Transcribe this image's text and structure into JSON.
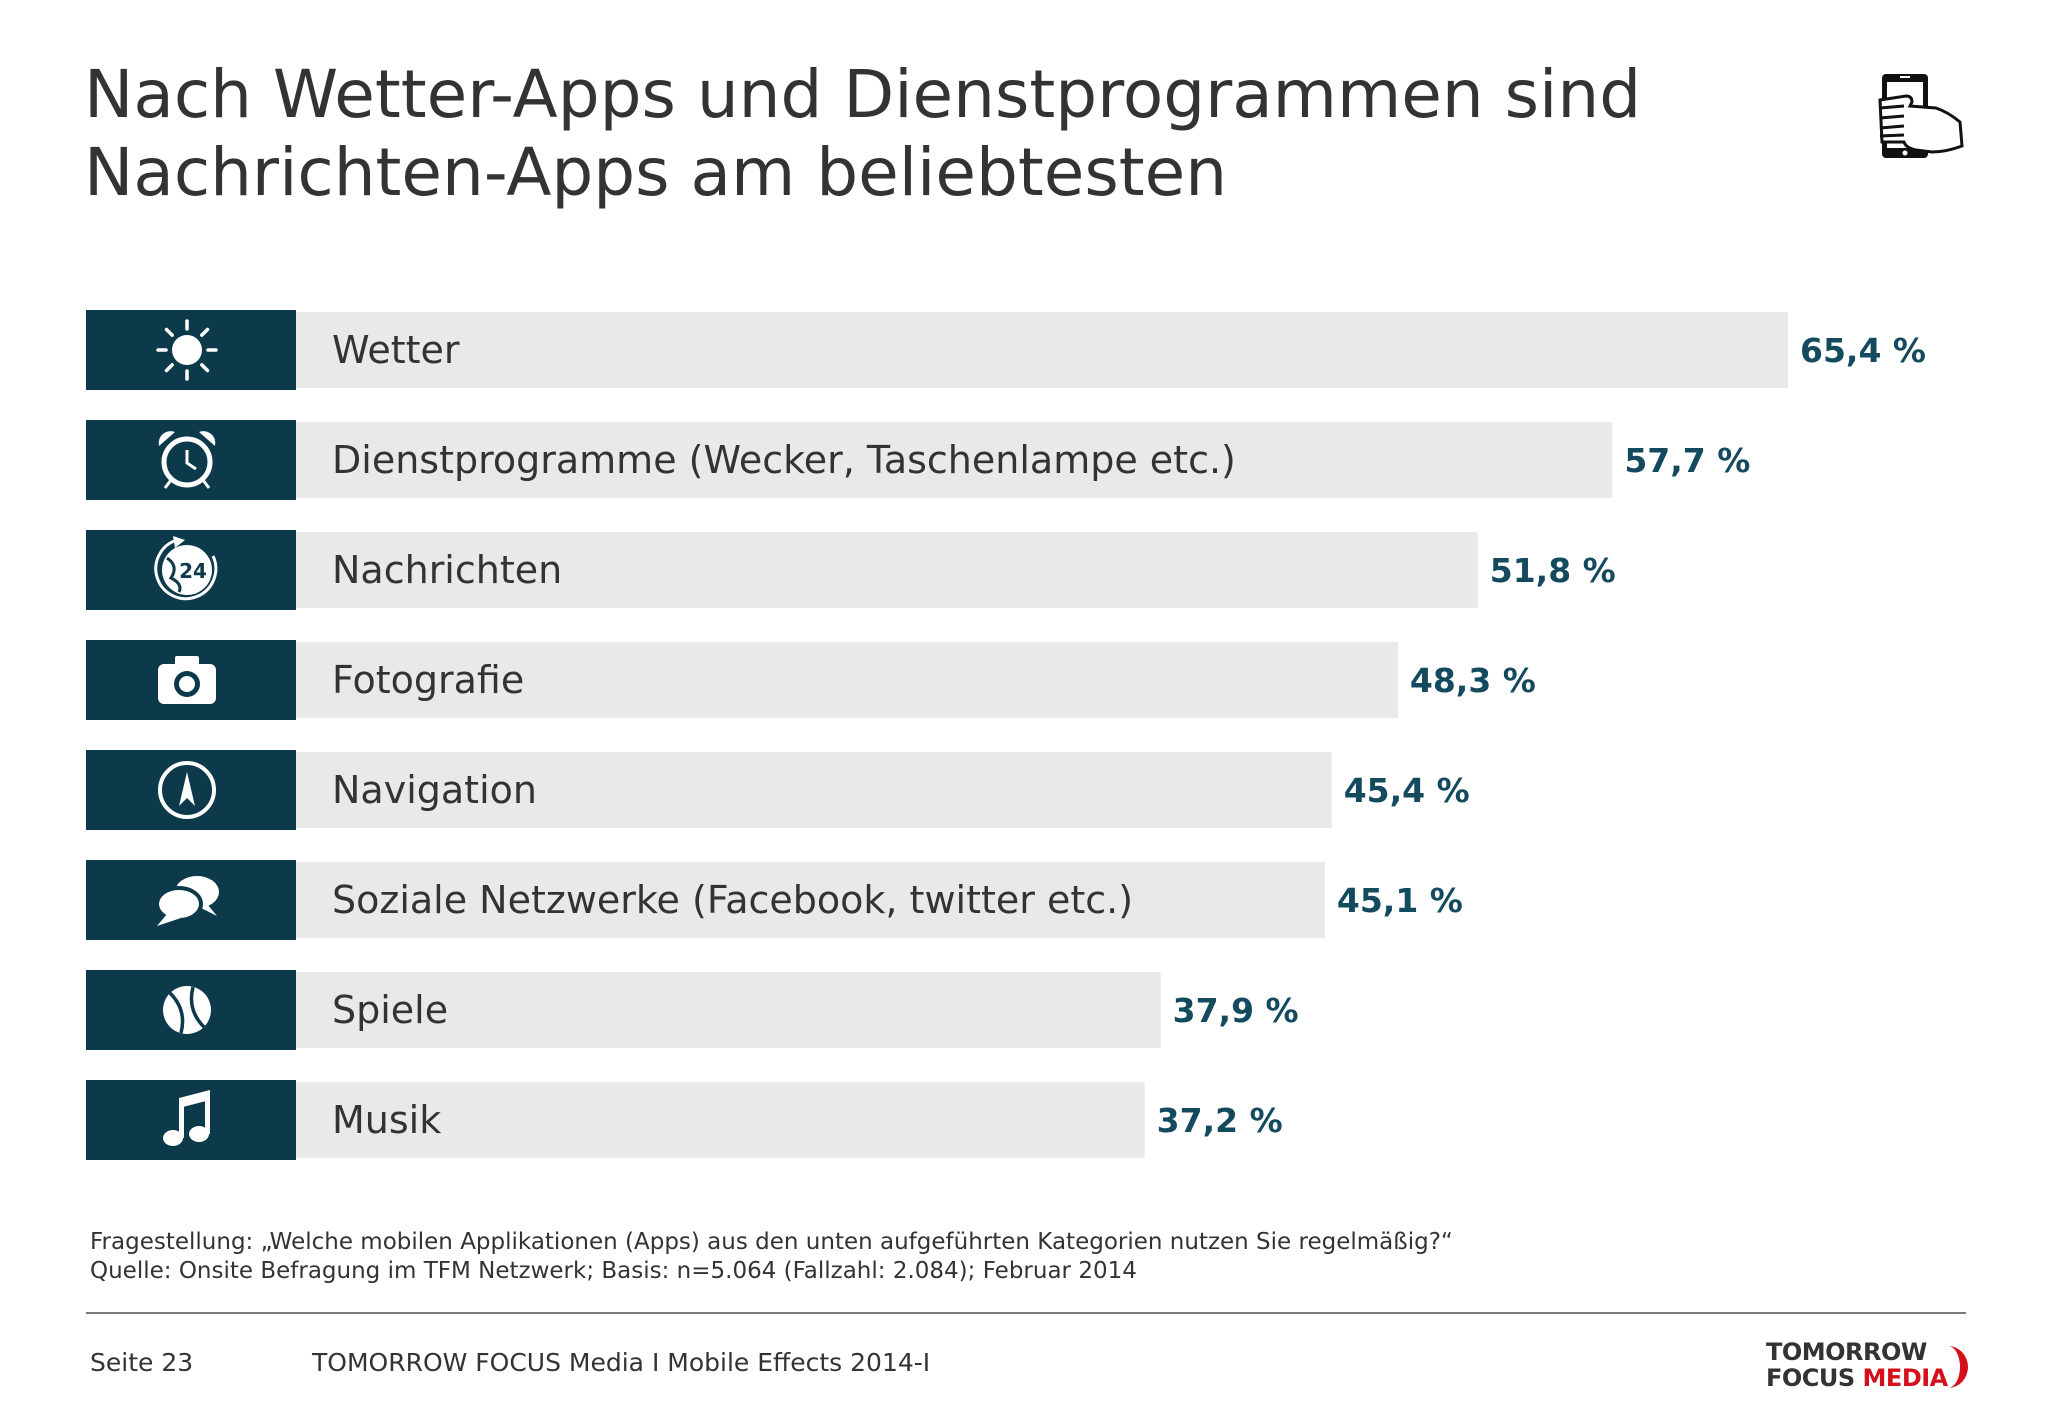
{
  "title": {
    "line1": "Nach Wetter-Apps und Dienstprogrammen sind",
    "line2": "Nachrichten-Apps am beliebtesten"
  },
  "header_icon": "hand-holding-smartphone-icon",
  "colors": {
    "icon_box": "#0c3a4a",
    "bar": "#e9e9e9",
    "value_text": "#134a5e",
    "logo_red": "#d4101a"
  },
  "chart_data": {
    "type": "bar",
    "orientation": "horizontal",
    "categories": [
      "Wetter",
      "Dienstprogramme (Wecker, Taschenlampe etc.)",
      "Nachrichten",
      "Fotografie",
      "Navigation",
      "Soziale Netzwerke (Facebook, twitter etc.)",
      "Spiele",
      "Musik"
    ],
    "values": [
      65.4,
      57.7,
      51.8,
      48.3,
      45.4,
      45.1,
      37.9,
      37.2
    ],
    "value_labels": [
      "65,4 %",
      "57,7 %",
      "51,8 %",
      "48,3 %",
      "45,4 %",
      "45,1 %",
      "37,9 %",
      "37,2 %"
    ],
    "icons": [
      "sun-icon",
      "alarm-clock-icon",
      "globe-24-icon",
      "camera-icon",
      "compass-icon",
      "speech-bubbles-icon",
      "ball-icon",
      "music-note-icon"
    ],
    "unit": "%",
    "grid": false,
    "legend": "none"
  },
  "notes": {
    "question": "Fragestellung: „Welche mobilen Applikationen (Apps) aus den unten aufgeführten Kategorien nutzen Sie regelmäßig?“",
    "source": "Quelle: Onsite Befragung im TFM Netzwerk; Basis: n=5.064 (Fallzahl: 2.084); Februar 2014"
  },
  "footer": {
    "page": "Seite 23",
    "publisher": "TOMORROW FOCUS Media  I  Mobile Effects 2014-I"
  },
  "logo": {
    "line1": "TOMORROW",
    "line2a": "FOCUS",
    "line2b": "MEDIA"
  }
}
